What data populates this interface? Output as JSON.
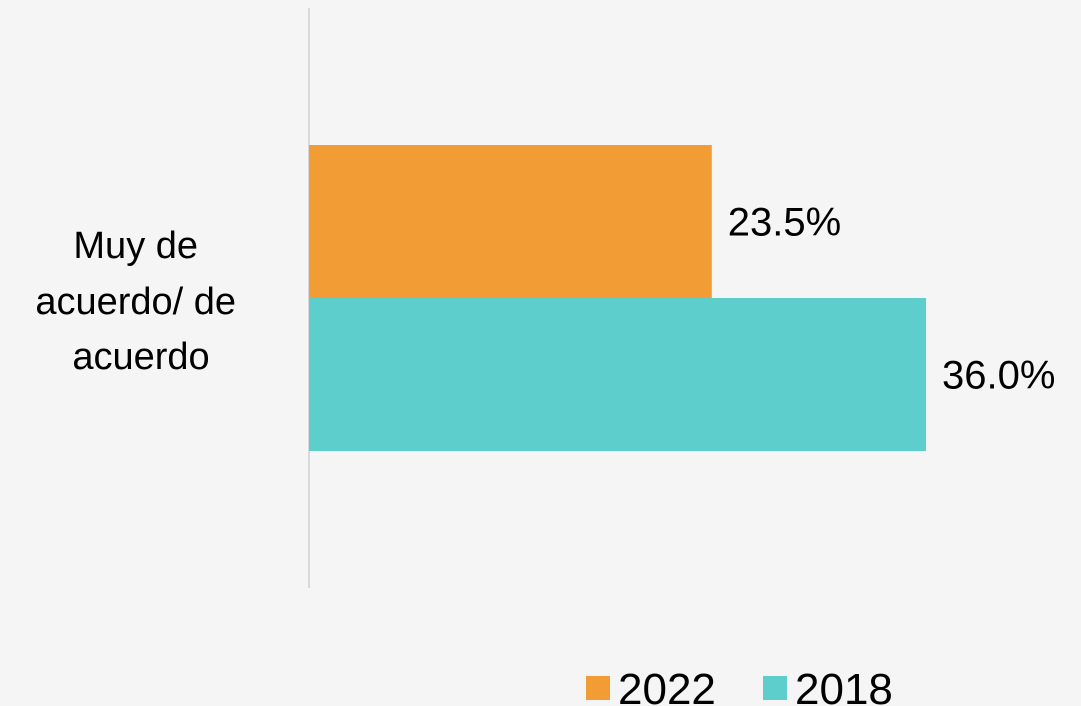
{
  "chart_data": {
    "type": "bar",
    "orientation": "horizontal",
    "categories": [
      "Muy de acuerdo/ de acuerdo"
    ],
    "category_label_lines": [
      "Muy de",
      "acuerdo/ de",
      "acuerdo"
    ],
    "series": [
      {
        "name": "2022",
        "values": [
          23.5
        ],
        "labels": [
          "23.5%"
        ],
        "color": "#F29C35"
      },
      {
        "name": "2018",
        "values": [
          36.0
        ],
        "labels": [
          "36.0%"
        ],
        "color": "#5ECECC"
      }
    ],
    "xlim": [
      0,
      45
    ],
    "value_format": "percent",
    "grid": false,
    "legend": {
      "placement": "bottom"
    },
    "axis_line_color": "#D9D9D9",
    "background": "#F5F5F5"
  }
}
